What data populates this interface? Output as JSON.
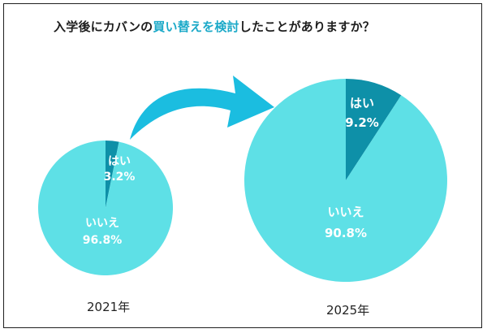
{
  "title": {
    "prefix": "入学後にカバンの",
    "highlight": "買い替えを検討",
    "suffix": "したことがありますか？"
  },
  "colors": {
    "no": "#5ee0e6",
    "yes": "#0e90a8",
    "arrow": "#1bbde0",
    "title_accent": "#1ba9c8",
    "label_text": "#ffffff"
  },
  "chart_data": [
    {
      "type": "pie",
      "title": "2021年",
      "slices": [
        {
          "label": "はい",
          "value": 3.2,
          "value_label": "3.2%",
          "color": "#0e90a8"
        },
        {
          "label": "いいえ",
          "value": 96.8,
          "value_label": "96.8%",
          "color": "#5ee0e6"
        }
      ]
    },
    {
      "type": "pie",
      "title": "2025年",
      "slices": [
        {
          "label": "はい",
          "value": 9.2,
          "value_label": "9.2%",
          "color": "#0e90a8"
        },
        {
          "label": "いいえ",
          "value": 90.8,
          "value_label": "90.8%",
          "color": "#5ee0e6"
        }
      ]
    }
  ]
}
